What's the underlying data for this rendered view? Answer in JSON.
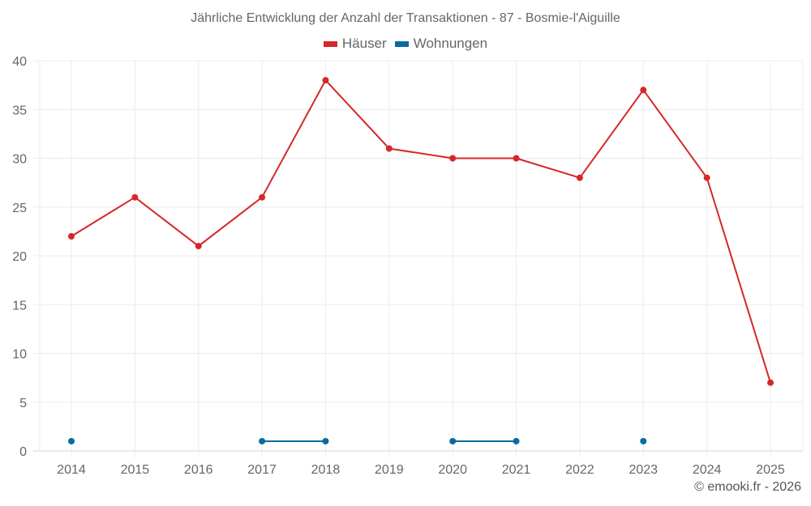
{
  "chart_data": {
    "type": "line",
    "title": "Jährliche Entwicklung der Anzahl der Transaktionen - 87 - Bosmie-l'Aiguille",
    "xlabel": "",
    "ylabel": "",
    "categories": [
      "2014",
      "2015",
      "2016",
      "2017",
      "2018",
      "2019",
      "2020",
      "2021",
      "2022",
      "2023",
      "2024",
      "2025"
    ],
    "series": [
      {
        "name": "Häuser",
        "color": "#d62728",
        "values": [
          22,
          26,
          21,
          26,
          38,
          31,
          30,
          30,
          28,
          37,
          28,
          7
        ]
      },
      {
        "name": "Wohnungen",
        "color": "#0b6aa2",
        "values": [
          1,
          null,
          null,
          1,
          1,
          null,
          1,
          1,
          null,
          1,
          null,
          null
        ]
      }
    ],
    "ylim": [
      0,
      40
    ],
    "yticks": [
      0,
      5,
      10,
      15,
      20,
      25,
      30,
      35,
      40
    ],
    "grid": true,
    "legend_position": "top-center"
  },
  "legend": [
    {
      "label": "Häuser",
      "color": "#d62728"
    },
    {
      "label": "Wohnungen",
      "color": "#0b6aa2"
    }
  ],
  "credit": "© emooki.fr - 2026"
}
